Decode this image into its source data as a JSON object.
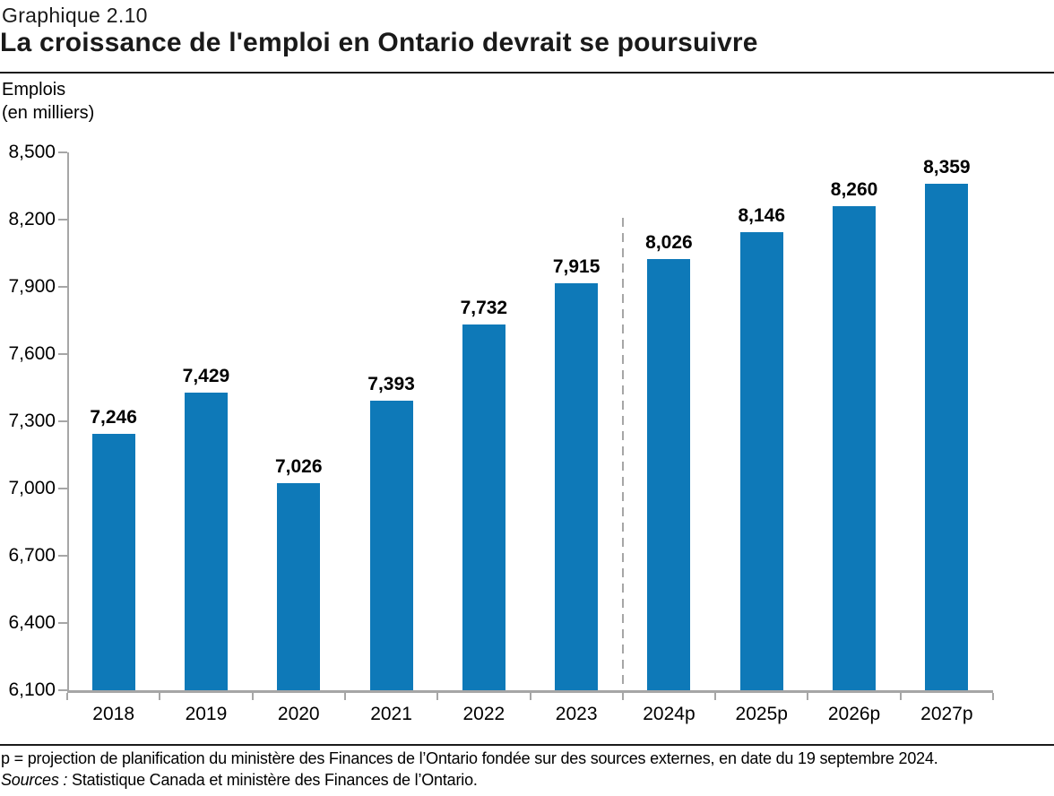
{
  "header": {
    "chart_number": "Graphique 2.10",
    "title": "La croissance de l'emploi en Ontario devrait se poursuivre"
  },
  "axis_unit": {
    "line1": "Emplois",
    "line2": "(en milliers)"
  },
  "chart_data": {
    "type": "bar",
    "title": "La croissance de l'emploi en Ontario devrait se poursuivre",
    "ylabel": "Emplois (en milliers)",
    "categories": [
      "2018",
      "2019",
      "2020",
      "2021",
      "2022",
      "2023",
      "2024p",
      "2025p",
      "2026p",
      "2027p"
    ],
    "values": [
      7246,
      7429,
      7026,
      7393,
      7732,
      7915,
      8026,
      8146,
      8260,
      8359
    ],
    "value_labels": [
      "7,246",
      "7,429",
      "7,026",
      "7,393",
      "7,732",
      "7,915",
      "8,026",
      "8,146",
      "8,260",
      "8,359"
    ],
    "ylim": [
      6100,
      8500
    ],
    "ytick_values": [
      6100,
      6400,
      6700,
      7000,
      7300,
      7600,
      7900,
      8200,
      8500
    ],
    "ytick_labels": [
      "6,100",
      "6,400",
      "6,700",
      "7,000",
      "7,300",
      "7,600",
      "7,900",
      "8,200",
      "8,500"
    ],
    "grid": false,
    "legend_position": "none",
    "projection_divider_after_index": 5,
    "bar_color": "#0e79b8",
    "axis_color": "#a6a6a6",
    "divider_color": "#a6a6a6",
    "label_color": "#000000"
  },
  "footer": {
    "note": "p = projection de planification du ministère des Finances de l’Ontario fondée sur des sources externes, en date du 19 septembre 2024.",
    "sources_label": "Sources :",
    "sources_text": " Statistique Canada et ministère des Finances de l’Ontario."
  }
}
